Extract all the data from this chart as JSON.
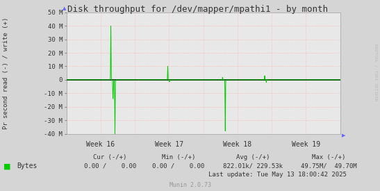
{
  "title": "Disk throughput for /dev/mapper/mpathi1 - by month",
  "ylabel": "Pr second read (-) / write (+)",
  "background_color": "#d5d5d5",
  "plot_bg_color": "#e8e8e8",
  "grid_color": "#ffaaaa",
  "line_color": "#00cc00",
  "zero_line_color": "#000000",
  "ylim": [
    -40000000,
    50000000
  ],
  "yticks": [
    -40000000,
    -30000000,
    -20000000,
    -10000000,
    0,
    10000000,
    20000000,
    30000000,
    40000000,
    50000000
  ],
  "ytick_labels": [
    "-40 M",
    "-30 M",
    "-20 M",
    "-10 M",
    "0",
    "10 M",
    "20 M",
    "30 M",
    "40 M",
    "50 M"
  ],
  "x_week_labels": [
    "Week 16",
    "Week 17",
    "Week 18",
    "Week 19"
  ],
  "watermark": "RRDTOOL / TOBI OETIKER",
  "footer_munin": "Munin 2.0.73",
  "legend_label": "Bytes",
  "legend_color": "#00cc00",
  "footer_cur_hdr": "Cur (-/+)",
  "footer_cur_val": "0.00 /    0.00",
  "footer_min_hdr": "Min (-/+)",
  "footer_min_val": "0.00 /    0.00",
  "footer_avg_hdr": "Avg (-/+)",
  "footer_avg_val": "822.01k/ 229.53k",
  "footer_max_hdr": "Max (-/+)",
  "footer_max_val": "49.75M/  49.70M",
  "footer_lastupdate": "Last update: Tue May 13 18:00:42 2025"
}
